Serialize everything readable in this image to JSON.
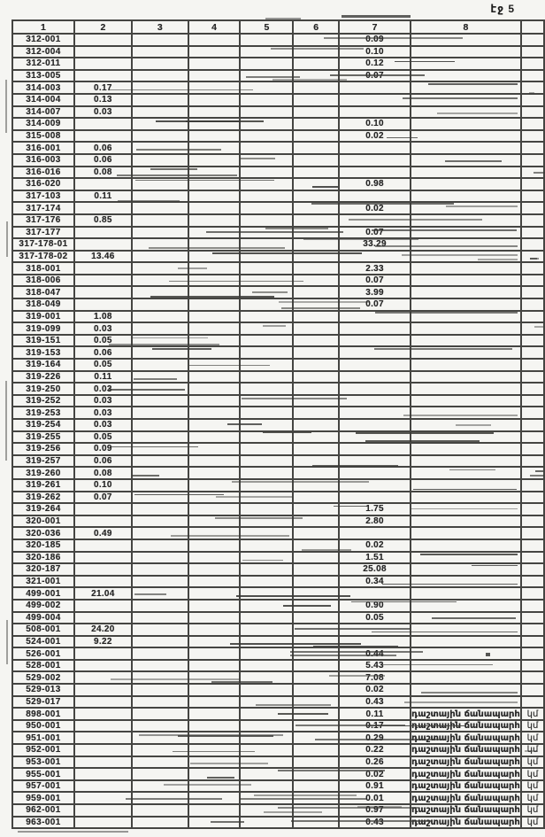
{
  "page": {
    "label": "էջ 5"
  },
  "table": {
    "headers": [
      "1",
      "2",
      "3",
      "4",
      "5",
      "6",
      "7",
      "8"
    ],
    "unit_label": "կմ",
    "rows": [
      {
        "code": "312-001",
        "v2": "",
        "v7": "0.09",
        "note": ""
      },
      {
        "code": "312-004",
        "v2": "",
        "v7": "0.10",
        "note": ""
      },
      {
        "code": "312-011",
        "v2": "",
        "v7": "0.12",
        "note": ""
      },
      {
        "code": "313-005",
        "v2": "",
        "v7": "0.07",
        "note": ""
      },
      {
        "code": "314-003",
        "v2": "0.17",
        "v7": "",
        "note": ""
      },
      {
        "code": "314-004",
        "v2": "0.13",
        "v7": "",
        "note": ""
      },
      {
        "code": "314-007",
        "v2": "0.03",
        "v7": "",
        "note": ""
      },
      {
        "code": "314-009",
        "v2": "",
        "v7": "0.10",
        "note": ""
      },
      {
        "code": "315-008",
        "v2": "",
        "v7": "0.02",
        "note": ""
      },
      {
        "code": "316-001",
        "v2": "0.06",
        "v7": "",
        "note": ""
      },
      {
        "code": "316-003",
        "v2": "0.06",
        "v7": "",
        "note": ""
      },
      {
        "code": "316-016",
        "v2": "0.08",
        "v7": "",
        "note": ""
      },
      {
        "code": "316-020",
        "v2": "",
        "v7": "0.98",
        "note": ""
      },
      {
        "code": "317-103",
        "v2": "0.11",
        "v7": "",
        "note": ""
      },
      {
        "code": "317-174",
        "v2": "",
        "v7": "0.02",
        "note": ""
      },
      {
        "code": "317-176",
        "v2": "0.85",
        "v7": "",
        "note": ""
      },
      {
        "code": "317-177",
        "v2": "",
        "v7": "0.07",
        "note": ""
      },
      {
        "code": "317-178-01",
        "v2": "",
        "v7": "33.29",
        "note": ""
      },
      {
        "code": "317-178-02",
        "v2": "13.46",
        "v7": "",
        "note": ""
      },
      {
        "code": "318-001",
        "v2": "",
        "v7": "2.33",
        "note": ""
      },
      {
        "code": "318-006",
        "v2": "",
        "v7": "0.07",
        "note": ""
      },
      {
        "code": "318-047",
        "v2": "",
        "v7": "3.99",
        "note": ""
      },
      {
        "code": "318-049",
        "v2": "",
        "v7": "0.07",
        "note": ""
      },
      {
        "code": "319-001",
        "v2": "1.08",
        "v7": "",
        "note": ""
      },
      {
        "code": "319-099",
        "v2": "0.03",
        "v7": "",
        "note": ""
      },
      {
        "code": "319-151",
        "v2": "0.05",
        "v7": "",
        "note": ""
      },
      {
        "code": "319-153",
        "v2": "0.06",
        "v7": "",
        "note": ""
      },
      {
        "code": "319-164",
        "v2": "0.05",
        "v7": "",
        "note": ""
      },
      {
        "code": "319-226",
        "v2": "0.11",
        "v7": "",
        "note": ""
      },
      {
        "code": "319-250",
        "v2": "0.03",
        "v7": "",
        "note": ""
      },
      {
        "code": "319-252",
        "v2": "0.03",
        "v7": "",
        "note": ""
      },
      {
        "code": "319-253",
        "v2": "0.03",
        "v7": "",
        "note": ""
      },
      {
        "code": "319-254",
        "v2": "0.03",
        "v7": "",
        "note": ""
      },
      {
        "code": "319-255",
        "v2": "0.05",
        "v7": "",
        "note": ""
      },
      {
        "code": "319-256",
        "v2": "0.09",
        "v7": "",
        "note": ""
      },
      {
        "code": "319-257",
        "v2": "0.06",
        "v7": "",
        "note": ""
      },
      {
        "code": "319-260",
        "v2": "0.08",
        "v7": "",
        "note": ""
      },
      {
        "code": "319-261",
        "v2": "0.10",
        "v7": "",
        "note": ""
      },
      {
        "code": "319-262",
        "v2": "0.07",
        "v7": "",
        "note": ""
      },
      {
        "code": "319-264",
        "v2": "",
        "v7": "1.75",
        "note": ""
      },
      {
        "code": "320-001",
        "v2": "",
        "v7": "2.80",
        "note": ""
      },
      {
        "code": "320-036",
        "v2": "0.49",
        "v7": "",
        "note": ""
      },
      {
        "code": "320-185",
        "v2": "",
        "v7": "0.02",
        "note": ""
      },
      {
        "code": "320-186",
        "v2": "",
        "v7": "1.51",
        "note": ""
      },
      {
        "code": "320-187",
        "v2": "",
        "v7": "25.08",
        "note": ""
      },
      {
        "code": "321-001",
        "v2": "",
        "v7": "0.34",
        "note": ""
      },
      {
        "code": "499-001",
        "v2": "21.04",
        "v7": "",
        "note": ""
      },
      {
        "code": "499-002",
        "v2": "",
        "v7": "0.90",
        "note": ""
      },
      {
        "code": "499-004",
        "v2": "",
        "v7": "0.05",
        "note": ""
      },
      {
        "code": "508-001",
        "v2": "24.20",
        "v7": "",
        "note": ""
      },
      {
        "code": "524-001",
        "v2": "9.22",
        "v7": "",
        "note": ""
      },
      {
        "code": "526-001",
        "v2": "",
        "v7": "0.44",
        "note": ""
      },
      {
        "code": "528-001",
        "v2": "",
        "v7": "5.43",
        "note": ""
      },
      {
        "code": "529-002",
        "v2": "",
        "v7": "7.08",
        "note": ""
      },
      {
        "code": "529-013",
        "v2": "",
        "v7": "0.02",
        "note": ""
      },
      {
        "code": "529-017",
        "v2": "",
        "v7": "0.43",
        "note": ""
      },
      {
        "code": "898-001",
        "v2": "",
        "v7": "0.11",
        "note": "դաշտային ճանապարհ"
      },
      {
        "code": "950-001",
        "v2": "",
        "v7": "0.17",
        "note": "դաշտային ճանապարհ"
      },
      {
        "code": "951-001",
        "v2": "",
        "v7": "0.29",
        "note": "դաշտային ճանապարհ"
      },
      {
        "code": "952-001",
        "v2": "",
        "v7": "0.22",
        "note": "դաշտային ճանապարհ"
      },
      {
        "code": "953-001",
        "v2": "",
        "v7": "0.26",
        "note": "դաշտային ճանապարհ"
      },
      {
        "code": "955-001",
        "v2": "",
        "v7": "0.02",
        "note": "դաշտային ճանապարհ"
      },
      {
        "code": "957-001",
        "v2": "",
        "v7": "0.91",
        "note": "դաշտային ճանապարհ"
      },
      {
        "code": "959-001",
        "v2": "",
        "v7": "0.01",
        "note": "դաշտային ճանապարհ"
      },
      {
        "code": "962-001",
        "v2": "",
        "v7": "0.97",
        "note": "դաշտային ճանապարհ"
      },
      {
        "code": "963-001",
        "v2": "",
        "v7": "0.43",
        "note": "դաշտային ճանապարհ"
      }
    ]
  }
}
